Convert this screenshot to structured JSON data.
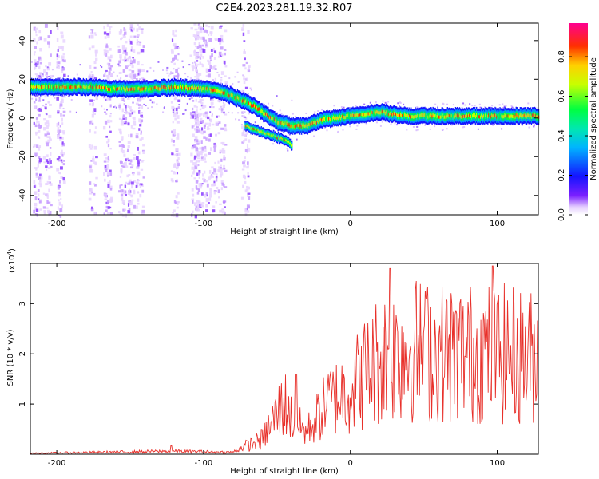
{
  "title": "C2E4.2023.281.19.32.R07",
  "colors": {
    "snr_line": "#e8302a",
    "colormap": [
      "#f4e8ff",
      "#cfa6ff",
      "#7b1fff",
      "#1414ff",
      "#00a0ff",
      "#00e5c0",
      "#00ff40",
      "#c8ff00",
      "#ffd000",
      "#ff3000",
      "#ff0080"
    ]
  },
  "chart_data": [
    {
      "type": "heatmap",
      "xlabel": "Height of straight line (km)",
      "ylabel": "Frequency (Hz)",
      "xlim": [
        -218,
        128
      ],
      "ylim": [
        -50,
        49
      ],
      "xticks": [
        -200,
        -100,
        0,
        100
      ],
      "yticks": [
        -40,
        -20,
        0,
        20,
        40
      ],
      "colorbar": {
        "label": "Normalized spectral amplitude",
        "range": [
          0.0,
          0.97
        ],
        "ticks": [
          "0.0",
          "0.2",
          "0.4",
          "0.6",
          "0.8"
        ]
      },
      "ridge": [
        {
          "x": -218,
          "y": 16
        },
        {
          "x": -200,
          "y": 16
        },
        {
          "x": -180,
          "y": 16
        },
        {
          "x": -160,
          "y": 15
        },
        {
          "x": -140,
          "y": 15
        },
        {
          "x": -120,
          "y": 16
        },
        {
          "x": -100,
          "y": 15
        },
        {
          "x": -90,
          "y": 14
        },
        {
          "x": -80,
          "y": 11
        },
        {
          "x": -70,
          "y": 8
        },
        {
          "x": -60,
          "y": 3
        },
        {
          "x": -50,
          "y": -2
        },
        {
          "x": -40,
          "y": -4
        },
        {
          "x": -30,
          "y": -4
        },
        {
          "x": -20,
          "y": -1
        },
        {
          "x": 0,
          "y": 1
        },
        {
          "x": 20,
          "y": 3
        },
        {
          "x": 40,
          "y": 1
        },
        {
          "x": 60,
          "y": 1
        },
        {
          "x": 80,
          "y": 1
        },
        {
          "x": 100,
          "y": 1
        },
        {
          "x": 128,
          "y": 1
        }
      ],
      "branch": [
        {
          "x": -72,
          "y": -4
        },
        {
          "x": -66,
          "y": -6
        },
        {
          "x": -58,
          "y": -8
        },
        {
          "x": -50,
          "y": -10
        },
        {
          "x": -44,
          "y": -12
        },
        {
          "x": -40,
          "y": -14
        }
      ]
    },
    {
      "type": "line",
      "xlabel": "Height of straight line (km)",
      "ylabel": "SNR (10 * v/v)",
      "yscale_label": "(x10",
      "yscale_exp": "4",
      "xlim": [
        -218,
        128
      ],
      "ylim": [
        0,
        3.8
      ],
      "xticks": [
        -200,
        -100,
        0,
        100
      ],
      "yticks": [
        1,
        2,
        3
      ],
      "envelope": [
        {
          "x": -218,
          "y": 0.02
        },
        {
          "x": -120,
          "y": 0.06
        },
        {
          "x": -80,
          "y": 0.04
        },
        {
          "x": -60,
          "y": 0.35
        },
        {
          "x": -45,
          "y": 1.2
        },
        {
          "x": -40,
          "y": 0.8
        },
        {
          "x": -30,
          "y": 0.5
        },
        {
          "x": -15,
          "y": 1.2
        },
        {
          "x": 0,
          "y": 1.5
        },
        {
          "x": 20,
          "y": 2.2
        },
        {
          "x": 40,
          "y": 2.4
        },
        {
          "x": 60,
          "y": 2.3
        },
        {
          "x": 80,
          "y": 2.3
        },
        {
          "x": 100,
          "y": 2.3
        },
        {
          "x": 128,
          "y": 2.2
        }
      ],
      "peaks": [
        {
          "x": -122,
          "y": 0.17
        },
        {
          "x": -37,
          "y": 1.6
        },
        {
          "x": 27,
          "y": 3.7
        },
        {
          "x": 52,
          "y": 3.1
        },
        {
          "x": 97,
          "y": 3.75
        }
      ]
    }
  ]
}
